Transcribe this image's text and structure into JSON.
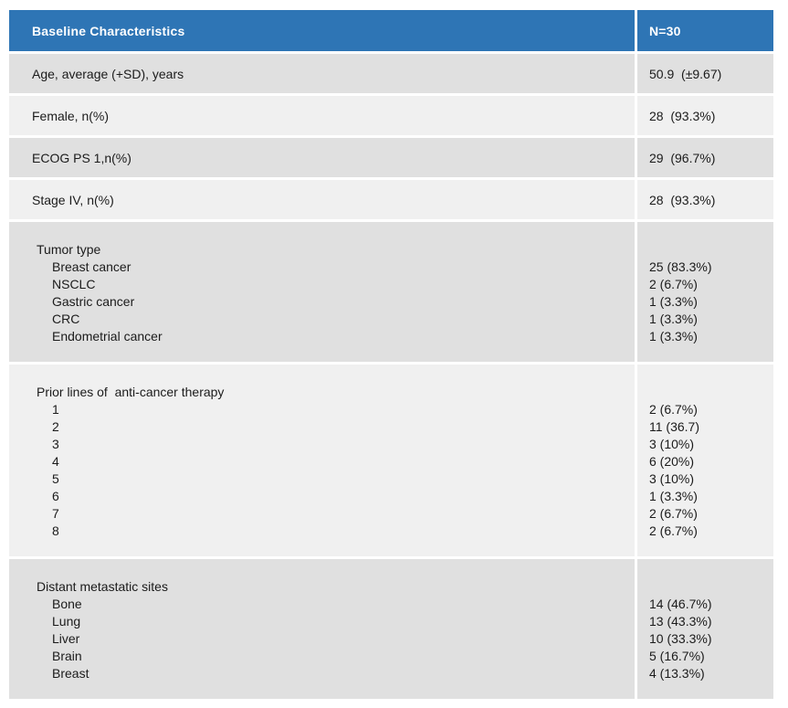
{
  "table": {
    "header": {
      "title": "Baseline Characteristics",
      "n_label": "N=30"
    },
    "colors": {
      "header_bg": "#2e75b5",
      "header_text": "#ffffff",
      "row_dark": "#e0e0e0",
      "row_light": "#f0f0f0",
      "body_text": "#1b1b1b"
    },
    "rows": [
      {
        "type": "simple",
        "shade": "dark",
        "label": "Age, average (+SD), years",
        "value": "50.9  (±9.67)"
      },
      {
        "type": "simple",
        "shade": "light",
        "label": "Female, n(%)",
        "value": "28  (93.3%)"
      },
      {
        "type": "simple",
        "shade": "dark",
        "label": "ECOG PS 1,n(%)",
        "value": "29  (96.7%)"
      },
      {
        "type": "simple",
        "shade": "light",
        "label": "Stage IV, n(%)",
        "value": "28  (93.3%)"
      },
      {
        "type": "group",
        "shade": "dark",
        "label": "Tumor type",
        "items": [
          {
            "label": "Breast cancer",
            "value": "25 (83.3%)"
          },
          {
            "label": "NSCLC",
            "value": "2 (6.7%)"
          },
          {
            "label": "Gastric cancer",
            "value": "1 (3.3%)"
          },
          {
            "label": "CRC",
            "value": "1 (3.3%)"
          },
          {
            "label": "Endometrial cancer",
            "value": "1 (3.3%)"
          }
        ]
      },
      {
        "type": "group",
        "shade": "light",
        "label": "Prior lines of  anti-cancer therapy",
        "items": [
          {
            "label": "1",
            "value": "2 (6.7%)"
          },
          {
            "label": "2",
            "value": "11 (36.7)"
          },
          {
            "label": "3",
            "value": "3 (10%)"
          },
          {
            "label": "4",
            "value": "6 (20%)"
          },
          {
            "label": "5",
            "value": "3 (10%)"
          },
          {
            "label": "6",
            "value": "1 (3.3%)"
          },
          {
            "label": "7",
            "value": "2 (6.7%)"
          },
          {
            "label": "8",
            "value": "2 (6.7%)"
          }
        ]
      },
      {
        "type": "group",
        "shade": "dark",
        "label": "Distant metastatic sites",
        "items": [
          {
            "label": "Bone",
            "value": "14 (46.7%)"
          },
          {
            "label": "Lung",
            "value": "13 (43.3%)"
          },
          {
            "label": "Liver",
            "value": "10 (33.3%)"
          },
          {
            "label": "Brain",
            "value": "5 (16.7%)"
          },
          {
            "label": "Breast",
            "value": "4 (13.3%)"
          }
        ]
      }
    ]
  }
}
